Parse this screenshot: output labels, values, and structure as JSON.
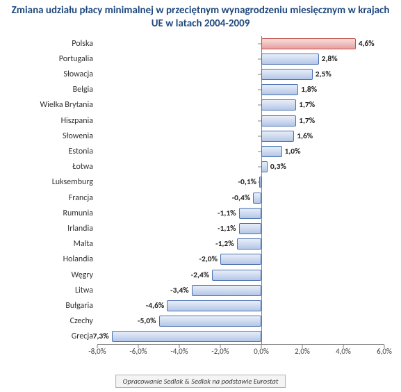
{
  "chart": {
    "type": "bar",
    "orientation": "horizontal",
    "title": "Zmiana udziału płacy minimalnej w przeciętnym wynagrodzeniu miesięcznym w krajach UE w latach 2004-2009",
    "title_color": "#1f497d",
    "title_fontsize": 15,
    "background_color": "#ffffff",
    "bar_fill_top": "#e8eef9",
    "bar_fill_bottom": "#b4c7e7",
    "bar_border": "#4a6fb0",
    "highlight_fill_top": "#f9dedc",
    "highlight_fill_bottom": "#e8a0a0",
    "highlight_border": "#c0504d",
    "axis_color": "#808080",
    "label_color": "#303030",
    "label_fontsize": 12,
    "value_label_fontsize": 11.5,
    "xlim": [
      -8,
      6
    ],
    "xtick_step": 2,
    "xtick_format_suffix": ",0%",
    "categories": [
      "Polska",
      "Portugalia",
      "Słowacja",
      "Belgia",
      "Wielka Brytania",
      "Hiszpania",
      "Słowenia",
      "Estonia",
      "Łotwa",
      "Luksemburg",
      "Francja",
      "Rumunia",
      "Irlandia",
      "Malta",
      "Holandia",
      "Węgry",
      "Litwa",
      "Bułgaria",
      "Czechy",
      "Grecja"
    ],
    "values": [
      4.6,
      2.8,
      2.5,
      1.8,
      1.7,
      1.7,
      1.6,
      1.0,
      0.3,
      -0.1,
      -0.4,
      -1.1,
      -1.1,
      -1.2,
      -2.0,
      -2.4,
      -3.4,
      -4.6,
      -5.0,
      -7.3
    ],
    "value_labels": [
      "4,6%",
      "2,8%",
      "2,5%",
      "1,8%",
      "1,7%",
      "1,7%",
      "1,6%",
      "1,0%",
      "0,3%",
      "-0,1%",
      "-0,4%",
      "-1,1%",
      "-1,1%",
      "-1,2%",
      "-2,0%",
      "-2,4%",
      "-3,4%",
      "-4,6%",
      "-5,0%",
      "-7,3%"
    ],
    "highlight_index": 0,
    "footer": "Opracowanie Sedlak & Sedlak na podstawie Eurostat"
  }
}
